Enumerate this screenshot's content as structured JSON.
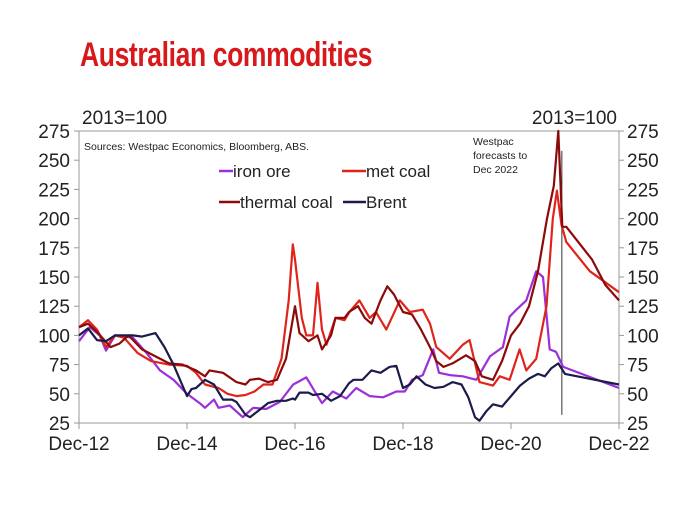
{
  "title": "Australian commodities",
  "chart_data": {
    "type": "line",
    "title": "Australian commodities",
    "ylabel_left": "2013=100",
    "ylabel_right": "2013=100",
    "source": "Sources: Westpac Economics, Bloomberg, ABS.",
    "annotation": [
      "Westpac",
      "forecasts to",
      "Dec 2022"
    ],
    "forecast_start_month": 107.3,
    "x_unit": "months since Dec-12",
    "xlim": [
      0,
      120
    ],
    "ylim": [
      25,
      275
    ],
    "yticks": [
      25,
      50,
      75,
      100,
      125,
      150,
      175,
      200,
      225,
      250,
      275
    ],
    "xticks": [
      {
        "m": 0,
        "label": "Dec-12"
      },
      {
        "m": 24,
        "label": "Dec-14"
      },
      {
        "m": 48,
        "label": "Dec-16"
      },
      {
        "m": 72,
        "label": "Dec-18"
      },
      {
        "m": 96,
        "label": "Dec-20"
      },
      {
        "m": 120,
        "label": "Dec-22"
      }
    ],
    "legend_position": "top-center",
    "series": [
      {
        "name": "iron ore",
        "color": "#9b30d9",
        "points": [
          [
            0,
            95
          ],
          [
            2.4,
            107
          ],
          [
            4.6,
            100
          ],
          [
            6,
            87
          ],
          [
            8,
            100
          ],
          [
            12,
            98
          ],
          [
            15,
            85
          ],
          [
            18,
            70
          ],
          [
            21,
            62
          ],
          [
            24,
            50
          ],
          [
            26.8,
            42
          ],
          [
            28,
            38
          ],
          [
            30,
            45
          ],
          [
            31,
            38
          ],
          [
            33.5,
            40
          ],
          [
            36.4,
            30
          ],
          [
            38.7,
            38
          ],
          [
            41.6,
            37
          ],
          [
            44.6,
            43
          ],
          [
            47.6,
            58
          ],
          [
            50.5,
            64
          ],
          [
            52.7,
            50
          ],
          [
            54,
            42
          ],
          [
            56.4,
            52
          ],
          [
            59.4,
            46
          ],
          [
            61.6,
            55
          ],
          [
            64.6,
            48
          ],
          [
            67.6,
            47
          ],
          [
            70.5,
            52
          ],
          [
            72.4,
            52
          ],
          [
            74,
            62
          ],
          [
            76.4,
            66
          ],
          [
            78.7,
            88
          ],
          [
            80,
            68
          ],
          [
            82.4,
            66
          ],
          [
            85.3,
            65
          ],
          [
            88.3,
            62
          ],
          [
            91.3,
            82
          ],
          [
            94.2,
            90
          ],
          [
            95.7,
            116
          ],
          [
            97.2,
            122
          ],
          [
            99.4,
            130
          ],
          [
            101.6,
            155
          ],
          [
            103.1,
            150
          ],
          [
            104.6,
            88
          ],
          [
            106,
            86
          ],
          [
            107.6,
            73
          ],
          [
            120,
            55
          ]
        ]
      },
      {
        "name": "met coal",
        "color": "#e0241c",
        "points": [
          [
            0,
            107
          ],
          [
            2,
            113
          ],
          [
            4,
            105
          ],
          [
            6,
            90
          ],
          [
            8,
            100
          ],
          [
            10,
            98
          ],
          [
            13,
            85
          ],
          [
            16,
            78
          ],
          [
            20,
            75
          ],
          [
            24,
            74
          ],
          [
            26,
            68
          ],
          [
            28,
            58
          ],
          [
            31,
            55
          ],
          [
            33,
            50
          ],
          [
            35,
            48
          ],
          [
            37,
            49
          ],
          [
            39,
            52
          ],
          [
            41,
            58
          ],
          [
            43,
            58
          ],
          [
            45,
            80
          ],
          [
            46.6,
            130
          ],
          [
            47.5,
            178
          ],
          [
            48,
            165
          ],
          [
            49.5,
            115
          ],
          [
            50.5,
            100
          ],
          [
            52,
            100
          ],
          [
            53,
            145
          ],
          [
            54,
            105
          ],
          [
            55,
            92
          ],
          [
            57,
            115
          ],
          [
            59,
            113
          ],
          [
            60.1,
            120
          ],
          [
            62.3,
            130
          ],
          [
            64.6,
            115
          ],
          [
            66,
            120
          ],
          [
            68.3,
            105
          ],
          [
            71.3,
            130
          ],
          [
            73.5,
            120
          ],
          [
            76.4,
            122
          ],
          [
            78,
            110
          ],
          [
            79.4,
            90
          ],
          [
            82.4,
            80
          ],
          [
            85.3,
            92
          ],
          [
            86.8,
            96
          ],
          [
            89,
            60
          ],
          [
            92,
            57
          ],
          [
            93.5,
            65
          ],
          [
            95.7,
            62
          ],
          [
            97.9,
            88
          ],
          [
            99.4,
            70
          ],
          [
            101.6,
            80
          ],
          [
            103.9,
            125
          ],
          [
            105.3,
            200
          ],
          [
            106.2,
            224
          ],
          [
            107.2,
            195
          ],
          [
            108.3,
            180
          ],
          [
            113.5,
            155
          ],
          [
            120,
            137
          ]
        ]
      },
      {
        "name": "thermal coal",
        "color": "#8b0a0a",
        "points": [
          [
            0,
            107
          ],
          [
            2,
            110
          ],
          [
            4,
            103
          ],
          [
            7,
            90
          ],
          [
            9,
            93
          ],
          [
            11,
            100
          ],
          [
            14,
            88
          ],
          [
            17,
            82
          ],
          [
            20,
            76
          ],
          [
            23,
            75
          ],
          [
            26,
            70
          ],
          [
            28,
            65
          ],
          [
            29,
            70
          ],
          [
            32,
            68
          ],
          [
            35,
            60
          ],
          [
            37,
            58
          ],
          [
            38,
            62
          ],
          [
            40,
            63
          ],
          [
            42,
            60
          ],
          [
            44,
            62
          ],
          [
            46,
            80
          ],
          [
            48,
            125
          ],
          [
            49,
            102
          ],
          [
            51,
            95
          ],
          [
            53,
            100
          ],
          [
            54,
            88
          ],
          [
            56,
            100
          ],
          [
            57,
            115
          ],
          [
            59,
            115
          ],
          [
            60,
            120
          ],
          [
            62,
            125
          ],
          [
            63.5,
            115
          ],
          [
            65,
            110
          ],
          [
            67,
            130
          ],
          [
            68.5,
            142
          ],
          [
            70,
            135
          ],
          [
            72,
            120
          ],
          [
            74,
            118
          ],
          [
            76,
            105
          ],
          [
            78,
            90
          ],
          [
            79.4,
            78
          ],
          [
            81,
            73
          ],
          [
            83,
            76
          ],
          [
            86,
            83
          ],
          [
            88,
            78
          ],
          [
            89.5,
            65
          ],
          [
            92,
            62
          ],
          [
            94,
            78
          ],
          [
            96,
            100
          ],
          [
            98,
            110
          ],
          [
            100,
            125
          ],
          [
            102,
            155
          ],
          [
            104,
            200
          ],
          [
            105.5,
            228
          ],
          [
            106.5,
            275
          ],
          [
            107.4,
            193
          ],
          [
            108.3,
            193
          ],
          [
            114,
            165
          ],
          [
            117,
            143
          ],
          [
            120,
            130
          ]
        ]
      },
      {
        "name": "Brent",
        "color": "#1c1c4a",
        "points": [
          [
            0,
            100
          ],
          [
            2,
            106
          ],
          [
            4,
            96
          ],
          [
            6,
            95
          ],
          [
            8,
            100
          ],
          [
            10,
            100
          ],
          [
            12,
            100
          ],
          [
            14,
            99
          ],
          [
            17,
            102
          ],
          [
            19,
            90
          ],
          [
            21,
            75
          ],
          [
            23,
            57
          ],
          [
            24,
            48
          ],
          [
            25,
            54
          ],
          [
            26,
            55
          ],
          [
            28,
            62
          ],
          [
            30,
            58
          ],
          [
            32,
            45
          ],
          [
            34,
            45
          ],
          [
            35,
            43
          ],
          [
            37,
            32
          ],
          [
            38,
            30
          ],
          [
            40,
            36
          ],
          [
            42,
            42
          ],
          [
            44,
            44
          ],
          [
            46,
            44
          ],
          [
            47.5,
            46
          ],
          [
            48,
            45
          ],
          [
            49,
            51
          ],
          [
            51,
            51
          ],
          [
            52,
            49
          ],
          [
            54,
            50
          ],
          [
            56,
            44
          ],
          [
            58,
            48
          ],
          [
            60,
            59
          ],
          [
            61,
            62
          ],
          [
            63,
            62
          ],
          [
            65,
            70
          ],
          [
            67,
            68
          ],
          [
            69,
            73
          ],
          [
            70.5,
            74
          ],
          [
            72,
            55
          ],
          [
            73.5,
            58
          ],
          [
            75,
            65
          ],
          [
            77,
            58
          ],
          [
            79,
            55
          ],
          [
            81,
            56
          ],
          [
            83,
            60
          ],
          [
            85,
            58
          ],
          [
            86.5,
            47
          ],
          [
            88,
            30
          ],
          [
            89,
            27
          ],
          [
            90.5,
            35
          ],
          [
            92,
            41
          ],
          [
            94,
            39
          ],
          [
            96,
            48
          ],
          [
            98,
            57
          ],
          [
            100,
            63
          ],
          [
            102,
            67
          ],
          [
            103.5,
            65
          ],
          [
            105,
            72
          ],
          [
            106.5,
            76
          ],
          [
            108,
            67
          ],
          [
            120,
            58
          ]
        ]
      }
    ]
  }
}
